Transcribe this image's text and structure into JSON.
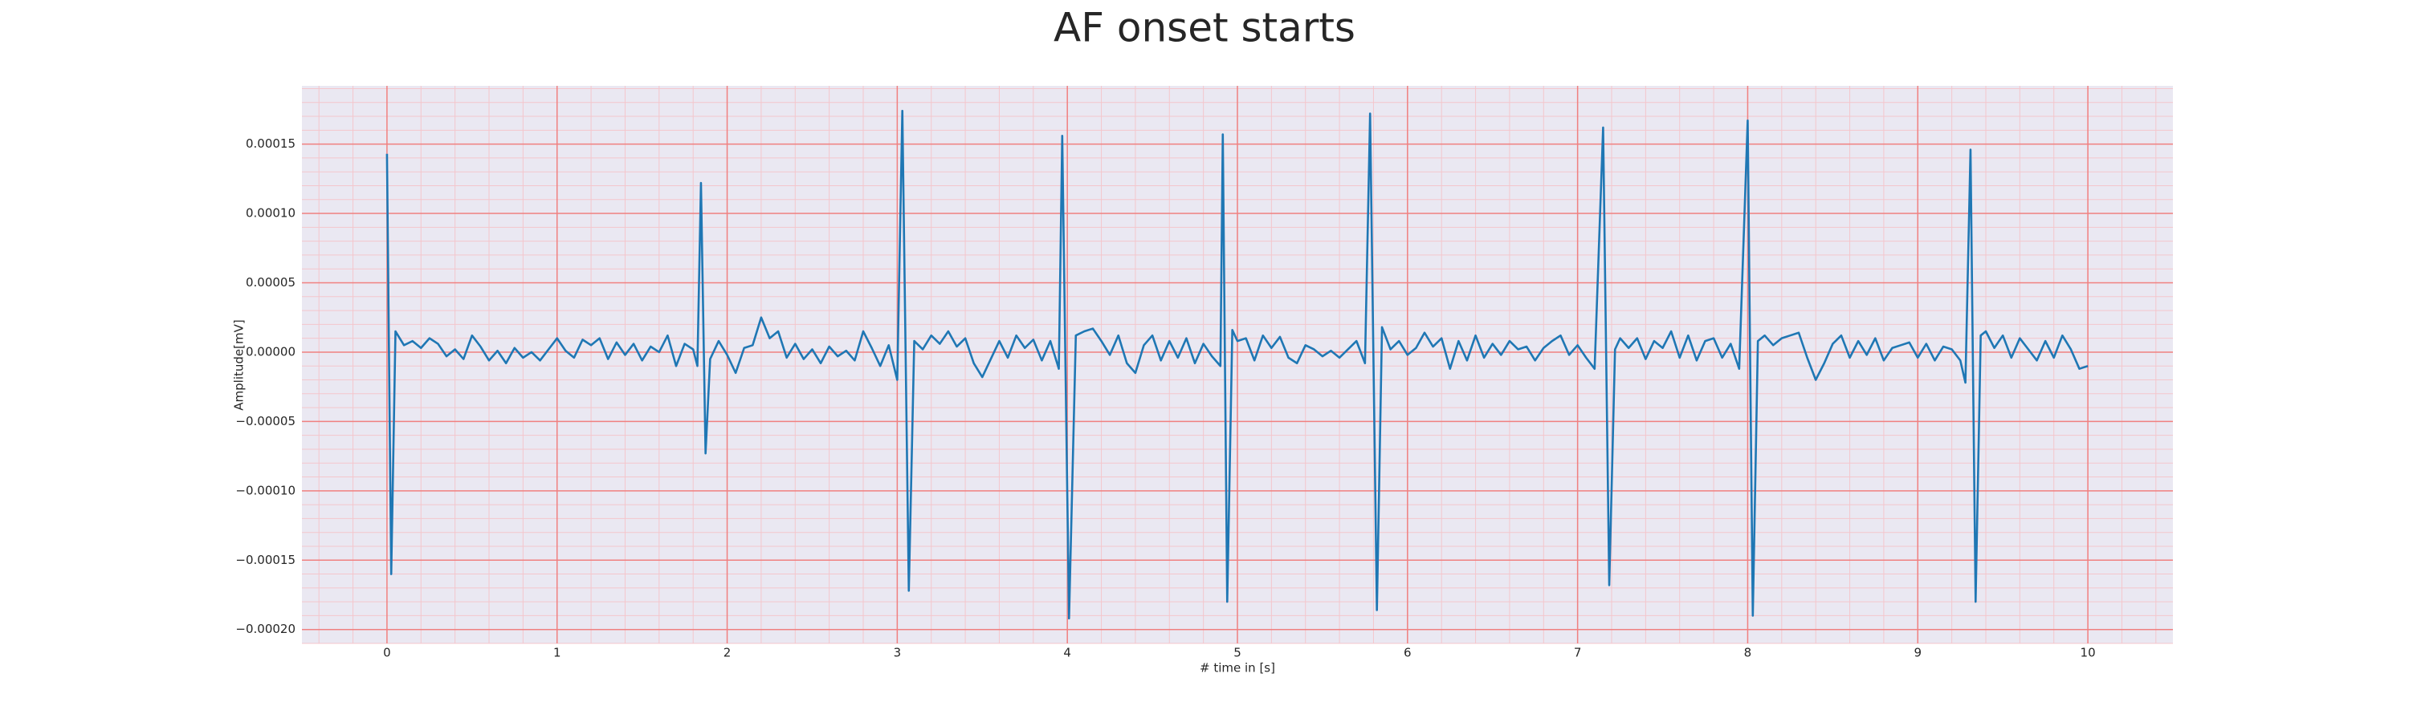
{
  "chart_data": {
    "type": "line",
    "title": "AF onset starts",
    "xlabel": "# time in [s]",
    "ylabel": "Amplitude[mV]",
    "color": "#1f77b4",
    "background": "#eae8f2",
    "grid": true,
    "major_grid_color": "#f08080",
    "minor_grid": true,
    "minor_grid_color": "#f4c6cc",
    "xlim": [
      -0.5,
      10.5
    ],
    "xticks": [
      0,
      1,
      2,
      3,
      4,
      5,
      6,
      7,
      8,
      9,
      10
    ],
    "ylim": [
      -0.00021,
      0.000192
    ],
    "yticks": [
      {
        "value": -0.0002,
        "label": "−0.00020"
      },
      {
        "value": -0.00015,
        "label": "−0.00015"
      },
      {
        "value": -0.0001,
        "label": "−0.00010"
      },
      {
        "value": -5e-05,
        "label": "−0.00005"
      },
      {
        "value": 0,
        "label": "0.00000"
      },
      {
        "value": 5e-05,
        "label": "0.00005"
      },
      {
        "value": 0.0001,
        "label": "0.00010"
      },
      {
        "value": 0.00015,
        "label": "0.00015"
      }
    ],
    "x": [
      0,
      0.025,
      0.05,
      0.1,
      0.15,
      0.2,
      0.25,
      0.3,
      0.35,
      0.4,
      0.45,
      0.5,
      0.55,
      0.6,
      0.65,
      0.7,
      0.75,
      0.8,
      0.85,
      0.9,
      0.95,
      1.0,
      1.05,
      1.1,
      1.15,
      1.2,
      1.25,
      1.3,
      1.35,
      1.4,
      1.45,
      1.5,
      1.55,
      1.6,
      1.65,
      1.7,
      1.75,
      1.8,
      1.825,
      1.846,
      1.873,
      1.9,
      1.95,
      2.0,
      2.05,
      2.1,
      2.15,
      2.2,
      2.25,
      2.3,
      2.35,
      2.4,
      2.45,
      2.5,
      2.55,
      2.6,
      2.65,
      2.7,
      2.75,
      2.8,
      2.85,
      2.9,
      2.95,
      3.0,
      3.03,
      3.068,
      3.1,
      3.15,
      3.2,
      3.25,
      3.3,
      3.35,
      3.4,
      3.45,
      3.5,
      3.55,
      3.6,
      3.65,
      3.7,
      3.75,
      3.8,
      3.85,
      3.9,
      3.95,
      3.97,
      4.01,
      4.05,
      4.1,
      4.15,
      4.2,
      4.25,
      4.3,
      4.35,
      4.4,
      4.45,
      4.5,
      4.55,
      4.6,
      4.65,
      4.7,
      4.75,
      4.8,
      4.85,
      4.9,
      4.914,
      4.94,
      4.97,
      5.0,
      5.05,
      5.1,
      5.15,
      5.2,
      5.25,
      5.3,
      5.35,
      5.4,
      5.45,
      5.5,
      5.55,
      5.6,
      5.65,
      5.7,
      5.75,
      5.78,
      5.82,
      5.85,
      5.9,
      5.95,
      6.0,
      6.05,
      6.1,
      6.15,
      6.2,
      6.25,
      6.3,
      6.35,
      6.4,
      6.45,
      6.5,
      6.55,
      6.6,
      6.65,
      6.7,
      6.75,
      6.8,
      6.85,
      6.9,
      6.95,
      7.0,
      7.05,
      7.1,
      7.15,
      7.186,
      7.22,
      7.25,
      7.3,
      7.35,
      7.4,
      7.45,
      7.5,
      7.55,
      7.6,
      7.65,
      7.7,
      7.75,
      7.8,
      7.85,
      7.9,
      7.95,
      8.0,
      8.03,
      8.06,
      8.1,
      8.15,
      8.2,
      8.25,
      8.3,
      8.35,
      8.4,
      8.45,
      8.5,
      8.55,
      8.6,
      8.65,
      8.7,
      8.75,
      8.8,
      8.85,
      8.9,
      8.95,
      9.0,
      9.05,
      9.1,
      9.15,
      9.2,
      9.25,
      9.28,
      9.31,
      9.34,
      9.37,
      9.4,
      9.45,
      9.5,
      9.55,
      9.6,
      9.65,
      9.7,
      9.75,
      9.8,
      9.85,
      9.9,
      9.95,
      10.0
    ],
    "values": [
      0.000143,
      -0.00016,
      1.5e-05,
      5e-06,
      8e-06,
      3e-06,
      1e-05,
      6e-06,
      -3e-06,
      2e-06,
      -5e-06,
      1.2e-05,
      4e-06,
      -6e-06,
      1e-06,
      -8e-06,
      3e-06,
      -4e-06,
      0,
      -6e-06,
      2e-06,
      1e-05,
      1e-06,
      -4e-06,
      9e-06,
      5e-06,
      1e-05,
      -5e-06,
      7e-06,
      -2e-06,
      6e-06,
      -6e-06,
      4e-06,
      0,
      1.2e-05,
      -1e-05,
      6e-06,
      2e-06,
      -1e-05,
      0.000122,
      -7.3e-05,
      -5e-06,
      8e-06,
      -2e-06,
      -1.5e-05,
      3e-06,
      5e-06,
      2.5e-05,
      1e-05,
      1.5e-05,
      -4e-06,
      6e-06,
      -5e-06,
      2e-06,
      -8e-06,
      4e-06,
      -3e-06,
      1e-06,
      -6e-06,
      1.5e-05,
      3e-06,
      -1e-05,
      5e-06,
      -2e-05,
      0.000174,
      -0.000172,
      8e-06,
      2e-06,
      1.2e-05,
      6e-06,
      1.5e-05,
      4e-06,
      1e-05,
      -8e-06,
      -1.8e-05,
      -5e-06,
      8e-06,
      -4e-06,
      1.2e-05,
      3e-06,
      9e-06,
      -6e-06,
      8e-06,
      -1.2e-05,
      0.000156,
      -0.000192,
      1.2e-05,
      1.5e-05,
      1.7e-05,
      8e-06,
      -2e-06,
      1.2e-05,
      -8e-06,
      -1.5e-05,
      5e-06,
      1.2e-05,
      -6e-06,
      8e-06,
      -4e-06,
      1e-05,
      -8e-06,
      6e-06,
      -3e-06,
      -1e-05,
      0.000157,
      -0.00018,
      1.6e-05,
      8e-06,
      1e-05,
      -6e-06,
      1.2e-05,
      3e-06,
      1.1e-05,
      -4e-06,
      -8e-06,
      5e-06,
      2e-06,
      -3e-06,
      1e-06,
      -4e-06,
      2e-06,
      8e-06,
      -8e-06,
      0.000172,
      -0.000186,
      1.8e-05,
      2e-06,
      8e-06,
      -2e-06,
      3e-06,
      1.4e-05,
      4e-06,
      1e-05,
      -1.2e-05,
      8e-06,
      -6e-06,
      1.2e-05,
      -4e-06,
      6e-06,
      -2e-06,
      8e-06,
      2e-06,
      4e-06,
      -6e-06,
      3e-06,
      8e-06,
      1.2e-05,
      -2e-06,
      5e-06,
      -4e-06,
      -1.2e-05,
      0.000162,
      -0.000168,
      2e-06,
      1e-05,
      3e-06,
      1e-05,
      -5e-06,
      8e-06,
      3e-06,
      1.5e-05,
      -4e-06,
      1.2e-05,
      -6e-06,
      8e-06,
      1e-05,
      -4e-06,
      6e-06,
      -1.2e-05,
      0.000167,
      -0.00019,
      8e-06,
      1.2e-05,
      5e-06,
      1e-05,
      1.2e-05,
      1.4e-05,
      -4e-06,
      -2e-05,
      -8e-06,
      6e-06,
      1.2e-05,
      -4e-06,
      8e-06,
      -2e-06,
      1e-05,
      -6e-06,
      3e-06,
      5e-06,
      7e-06,
      -4e-06,
      6e-06,
      -6e-06,
      4e-06,
      2e-06,
      -6e-06,
      -2.2e-05,
      0.000146,
      -0.00018,
      1.2e-05,
      1.5e-05,
      3e-06,
      1.2e-05,
      -4e-06,
      1e-05,
      2e-06,
      -6e-06,
      8e-06,
      -4e-06,
      1.2e-05,
      2e-06,
      -1.2e-05,
      -1e-05
    ]
  }
}
